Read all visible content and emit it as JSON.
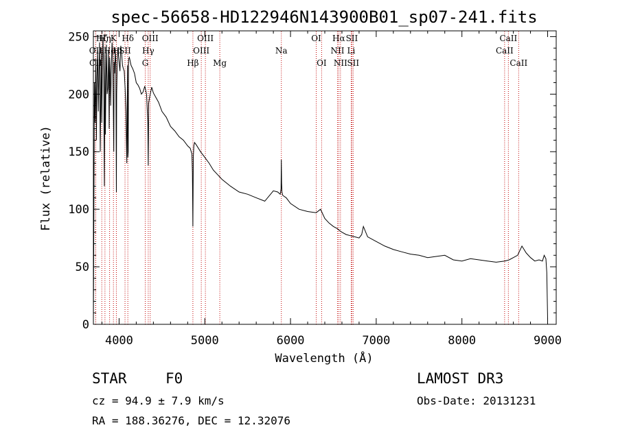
{
  "chart_data": {
    "type": "line",
    "title": "spec-56658-HD122946N143900B01_sp07-241.fits",
    "xlabel": "Wavelength (Å)",
    "ylabel": "Flux (relative)",
    "xlim": [
      3700,
      9100
    ],
    "ylim": [
      0,
      255
    ],
    "xticks": [
      4000,
      5000,
      6000,
      7000,
      8000,
      9000
    ],
    "yticks": [
      0,
      50,
      100,
      150,
      200,
      250
    ],
    "series": [
      {
        "name": "flux",
        "x": [
          3700,
          3705,
          3712,
          3720,
          3728,
          3735,
          3742,
          3750,
          3758,
          3765,
          3772,
          3780,
          3786,
          3792,
          3798,
          3805,
          3812,
          3820,
          3828,
          3835,
          3840,
          3846,
          3852,
          3860,
          3868,
          3876,
          3884,
          3890,
          3896,
          3902,
          3910,
          3918,
          3926,
          3933,
          3938,
          3942,
          3948,
          3955,
          3962,
          3968,
          3972,
          3978,
          3985,
          3992,
          4000,
          4010,
          4020,
          4030,
          4040,
          4050,
          4060,
          4070,
          4080,
          4090,
          4098,
          4102,
          4106,
          4110,
          4120,
          4140,
          4160,
          4180,
          4200,
          4220,
          4240,
          4260,
          4280,
          4300,
          4320,
          4335,
          4340,
          4345,
          4355,
          4380,
          4400,
          4430,
          4460,
          4500,
          4550,
          4600,
          4650,
          4700,
          4750,
          4800,
          4830,
          4850,
          4855,
          4861,
          4866,
          4872,
          4880,
          4900,
          4950,
          5000,
          5050,
          5100,
          5150,
          5200,
          5300,
          5400,
          5500,
          5600,
          5700,
          5800,
          5850,
          5880,
          5890,
          5893,
          5896,
          5900,
          5910,
          5950,
          6000,
          6100,
          6200,
          6300,
          6350,
          6400,
          6450,
          6500,
          6550,
          6563,
          6600,
          6650,
          6700,
          6750,
          6800,
          6830,
          6850,
          6900,
          7000,
          7100,
          7200,
          7300,
          7400,
          7500,
          7600,
          7700,
          7800,
          7900,
          8000,
          8100,
          8200,
          8300,
          8400,
          8500,
          8550,
          8600,
          8650,
          8700,
          8750,
          8800,
          8850,
          8900,
          8940,
          8960,
          8980,
          8990,
          9000
        ],
        "values": [
          0,
          82,
          210,
          175,
          230,
          160,
          215,
          238,
          185,
          220,
          245,
          150,
          190,
          240,
          175,
          228,
          250,
          215,
          120,
          235,
          165,
          210,
          243,
          200,
          205,
          238,
          170,
          232,
          218,
          190,
          225,
          245,
          232,
          185,
          150,
          228,
          218,
          240,
          225,
          115,
          200,
          225,
          240,
          235,
          228,
          220,
          242,
          235,
          225,
          222,
          220,
          205,
          185,
          140,
          225,
          145,
          150,
          230,
          232,
          225,
          222,
          218,
          210,
          208,
          205,
          200,
          202,
          207,
          200,
          175,
          138,
          192,
          197,
          206,
          201,
          197,
          193,
          185,
          180,
          172,
          168,
          163,
          160,
          155,
          153,
          148,
          132,
          85,
          145,
          155,
          158,
          156,
          150,
          145,
          140,
          134,
          130,
          126,
          120,
          115,
          113,
          110,
          107,
          116,
          115,
          113,
          118,
          143,
          123,
          115,
          112,
          110,
          105,
          100,
          98,
          97,
          100,
          92,
          88,
          85,
          83,
          82,
          80,
          78,
          77,
          76,
          75,
          78,
          85,
          76,
          72,
          68,
          65,
          63,
          61,
          60,
          58,
          59,
          60,
          56,
          55,
          57,
          56,
          55,
          54,
          55,
          56,
          58,
          60,
          68,
          62,
          58,
          55,
          56,
          55,
          60,
          57,
          45,
          5
        ]
      }
    ],
    "lines": [
      {
        "label": "Hζ",
        "wl": 3798,
        "row": 0
      },
      {
        "label": "OII",
        "wl": 3727,
        "row": 1
      },
      {
        "label": "CII",
        "wl": 3727,
        "row": 2
      },
      {
        "label": "Hη",
        "wl": 3835,
        "row": 0
      },
      {
        "label": "K",
        "wl": 3934,
        "row": 0
      },
      {
        "label": "He",
        "wl": 3889,
        "row": 1
      },
      {
        "label": "H",
        "wl": 3968,
        "row": 1
      },
      {
        "label": "SII",
        "wl": 4069,
        "row": 1
      },
      {
        "label": "Hδ",
        "wl": 4102,
        "row": 0
      },
      {
        "label": "OIII",
        "wl": 4363,
        "row": 0
      },
      {
        "label": "Hγ",
        "wl": 4340,
        "row": 1
      },
      {
        "label": "G",
        "wl": 4305,
        "row": 2
      },
      {
        "label": "Hβ",
        "wl": 4861,
        "row": 2
      },
      {
        "label": "OIII",
        "wl": 5007,
        "row": 0
      },
      {
        "label": "OIII",
        "wl": 4959,
        "row": 1
      },
      {
        "label": "Mg",
        "wl": 5175,
        "row": 2
      },
      {
        "label": "Na",
        "wl": 5893,
        "row": 1
      },
      {
        "label": "OI",
        "wl": 6300,
        "row": 0
      },
      {
        "label": "OI",
        "wl": 6363,
        "row": 2
      },
      {
        "label": "Hα",
        "wl": 6563,
        "row": 0
      },
      {
        "label": "SII",
        "wl": 6716,
        "row": 0
      },
      {
        "label": "NII",
        "wl": 6548,
        "row": 1
      },
      {
        "label": "Li",
        "wl": 6708,
        "row": 1
      },
      {
        "label": "NII",
        "wl": 6583,
        "row": 2
      },
      {
        "label": "SII",
        "wl": 6731,
        "row": 2
      },
      {
        "label": "CaII",
        "wl": 8542,
        "row": 0
      },
      {
        "label": "CaII",
        "wl": 8498,
        "row": 1
      },
      {
        "label": "CaII",
        "wl": 8662,
        "row": 2
      }
    ]
  },
  "info": {
    "class": "STAR",
    "subclass": "F0",
    "survey": "LAMOST DR3",
    "cz": "cz = 94.9 ± 7.9 km/s",
    "obs_date": "Obs-Date: 20131231",
    "coords": "RA = 188.36276, DEC =  12.32076"
  }
}
